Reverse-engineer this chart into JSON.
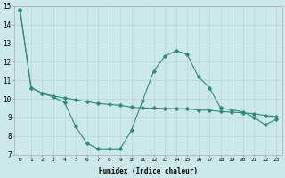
{
  "x": [
    0,
    1,
    2,
    3,
    4,
    5,
    6,
    7,
    8,
    9,
    10,
    11,
    12,
    13,
    14,
    15,
    16,
    17,
    18,
    19,
    20,
    21,
    22,
    23
  ],
  "line1": [
    14.8,
    10.6,
    10.3,
    10.1,
    9.8,
    8.5,
    7.6,
    7.3,
    7.3,
    7.3,
    8.3,
    9.9,
    11.5,
    12.3,
    12.6,
    12.4,
    11.2,
    10.6,
    9.5,
    9.4,
    9.3,
    9.0,
    8.6,
    8.9
  ],
  "line2": [
    14.8,
    10.6,
    10.3,
    10.15,
    10.05,
    9.95,
    9.85,
    9.75,
    9.7,
    9.65,
    9.55,
    9.5,
    9.5,
    9.48,
    9.47,
    9.46,
    9.4,
    9.38,
    9.32,
    9.28,
    9.25,
    9.2,
    9.1,
    9.05
  ],
  "line_color": "#2e8b77",
  "bg_color": "#cce8e8",
  "grid_color": "#b8d8d8",
  "xlabel": "Humidex (Indice chaleur)",
  "ylim": [
    7,
    15
  ],
  "xlim": [
    -0.5,
    23.5
  ],
  "yticks": [
    7,
    8,
    9,
    10,
    11,
    12,
    13,
    14,
    15
  ],
  "xticks": [
    0,
    1,
    2,
    3,
    4,
    5,
    6,
    7,
    8,
    9,
    10,
    11,
    12,
    13,
    14,
    15,
    16,
    17,
    18,
    19,
    20,
    21,
    22,
    23
  ]
}
